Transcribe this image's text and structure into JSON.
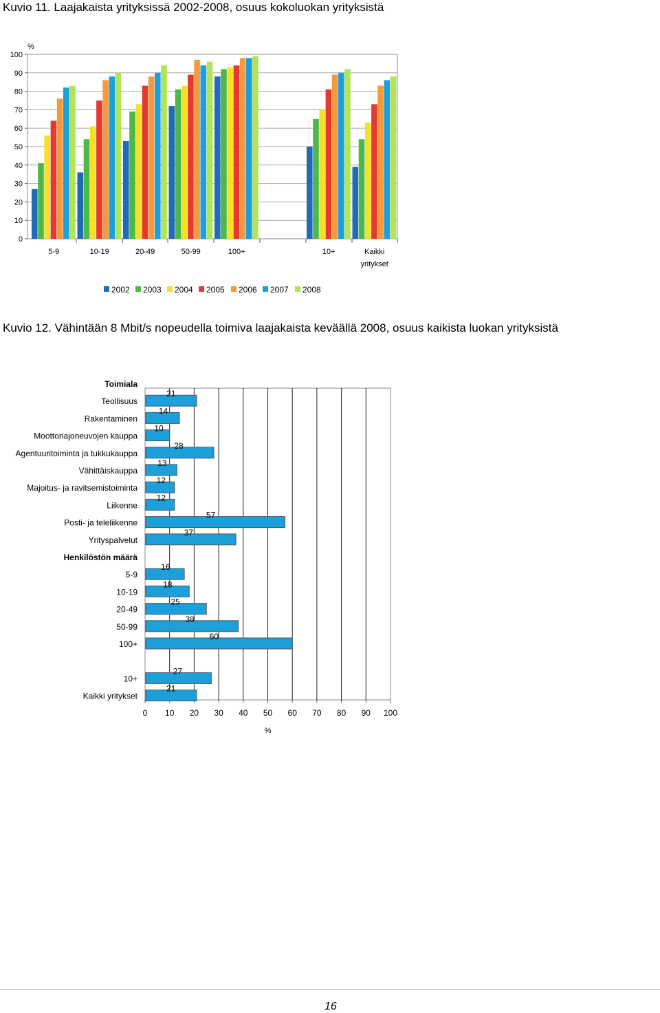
{
  "captions": {
    "fig11": "Kuvio 11. Laajakaista yrityksissä 2002-2008, osuus kokoluokan yrityksistä",
    "fig12": "Kuvio 12. Vähintään 8 Mbit/s nopeudella toimiva laajakaista keväällä 2008, osuus kaikista luokan yrityksistä"
  },
  "page_number": "16",
  "chart_data": [
    {
      "type": "bar",
      "title": "Kuvio 11. Laajakaista yrityksissä 2002-2008, osuus kokoluokan yrityksistä",
      "ylabel": "%",
      "ylim": [
        0,
        100
      ],
      "yticks": [
        0,
        10,
        20,
        30,
        40,
        50,
        60,
        70,
        80,
        90,
        100
      ],
      "grid": true,
      "legend_position": "bottom",
      "categories": [
        "5-9",
        "10-19",
        "20-49",
        "50-99",
        "100+",
        "10+",
        "Kaikki yritykset"
      ],
      "category_groups": [
        [
          0,
          1,
          2,
          3,
          4
        ],
        [
          5,
          6
        ]
      ],
      "series": [
        {
          "name": "2002",
          "color": "#1f6bb5",
          "values": [
            27,
            36,
            53,
            72,
            88,
            50,
            39
          ]
        },
        {
          "name": "2003",
          "color": "#4db848",
          "values": [
            41,
            54,
            69,
            81,
            92,
            65,
            54
          ]
        },
        {
          "name": "2004",
          "color": "#f5e02a",
          "values": [
            56,
            61,
            73,
            83,
            93,
            70,
            63
          ]
        },
        {
          "name": "2005",
          "color": "#e43a32",
          "values": [
            64,
            75,
            83,
            89,
            94,
            81,
            73
          ]
        },
        {
          "name": "2006",
          "color": "#f59a3c",
          "values": [
            76,
            86,
            88,
            97,
            98,
            89,
            83
          ]
        },
        {
          "name": "2007",
          "color": "#1ba0dc",
          "values": [
            82,
            88,
            90,
            94,
            98,
            90,
            86
          ]
        },
        {
          "name": "2008",
          "color": "#b3e356",
          "values": [
            83,
            90,
            94,
            96,
            99,
            92,
            88
          ]
        }
      ]
    },
    {
      "type": "bar",
      "orientation": "horizontal",
      "title": "Kuvio 12. Vähintään 8 Mbit/s nopeudella toimiva laajakaista keväällä 2008, osuus kaikista luokan yrityksistä",
      "xlabel": "%",
      "xlim": [
        0,
        100
      ],
      "xticks": [
        0,
        10,
        20,
        30,
        40,
        50,
        60,
        70,
        80,
        90,
        100
      ],
      "grid": true,
      "bar_color": "#1ba0dc",
      "groups": [
        {
          "header": "Toimiala",
          "items": [
            {
              "label": "Teollisuus",
              "value": 21
            },
            {
              "label": "Rakentaminen",
              "value": 14
            },
            {
              "label": "Moottoriajoneuvojen kauppa",
              "value": 10
            },
            {
              "label": "Agentuuritoiminta ja tukkukauppa",
              "value": 28
            },
            {
              "label": "Vähittäiskauppa",
              "value": 13
            },
            {
              "label": "Majoitus- ja ravitsemistoiminta",
              "value": 12
            },
            {
              "label": "Liikenne",
              "value": 12
            },
            {
              "label": "Posti- ja teleliikenne",
              "value": 57
            },
            {
              "label": "Yrityspalvelut",
              "value": 37
            }
          ]
        },
        {
          "header": "Henkilöstön määrä",
          "items": [
            {
              "label": "5-9",
              "value": 16
            },
            {
              "label": "10-19",
              "value": 18
            },
            {
              "label": "20-49",
              "value": 25
            },
            {
              "label": "50-99",
              "value": 38
            },
            {
              "label": "100+",
              "value": 60
            }
          ]
        },
        {
          "header": "",
          "items": [
            {
              "label": "10+",
              "value": 27
            },
            {
              "label": "Kaikki yritykset",
              "value": 21
            }
          ]
        }
      ]
    }
  ]
}
